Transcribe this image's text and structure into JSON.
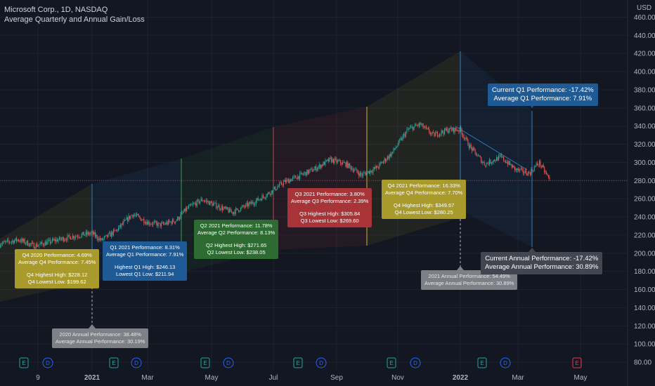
{
  "header": {
    "symbol": "Microsoft Corp., 1D, NASDAQ",
    "indicator": "Average Quarterly and Annual Gain/Loss"
  },
  "colors": {
    "background": "#131722",
    "up": "#26a69a",
    "down": "#ef5350",
    "q1": "#1e5a96",
    "q2": "#2e6b32",
    "q3": "#a83438",
    "q4": "#a99a2c",
    "annual": "#7e8088",
    "annual_current": "#434651"
  },
  "chart_data": {
    "type": "candlestick",
    "currency": "USD",
    "ylim": [
      80,
      460
    ],
    "y_ticks": [
      "460.00",
      "440.00",
      "420.00",
      "400.00",
      "380.00",
      "360.00",
      "340.00",
      "320.00",
      "300.00",
      "280.00",
      "260.00",
      "240.00",
      "220.00",
      "200.00",
      "180.00",
      "160.00",
      "140.00",
      "120.00",
      "100.00",
      "80.00"
    ],
    "x_ticks": [
      "9",
      "2021",
      "Mar",
      "May",
      "Jul",
      "Sep",
      "Nov",
      "2022",
      "Mar",
      "May"
    ],
    "last_price": 280,
    "price_path": [
      [
        "2020-10-01",
        210
      ],
      [
        "2020-10-20",
        215
      ],
      [
        "2020-11-05",
        208
      ],
      [
        "2020-11-25",
        214
      ],
      [
        "2020-12-15",
        219
      ],
      [
        "2021-01-01",
        222
      ],
      [
        "2021-01-10",
        214
      ],
      [
        "2021-01-25",
        225
      ],
      [
        "2021-02-10",
        243
      ],
      [
        "2021-02-25",
        234
      ],
      [
        "2021-03-10",
        231
      ],
      [
        "2021-03-25",
        236
      ],
      [
        "2021-04-05",
        249
      ],
      [
        "2021-04-20",
        259
      ],
      [
        "2021-05-05",
        252
      ],
      [
        "2021-05-20",
        245
      ],
      [
        "2021-06-10",
        256
      ],
      [
        "2021-06-25",
        266
      ],
      [
        "2021-07-10",
        278
      ],
      [
        "2021-07-25",
        285
      ],
      [
        "2021-08-10",
        293
      ],
      [
        "2021-08-25",
        303
      ],
      [
        "2021-09-10",
        298
      ],
      [
        "2021-09-25",
        286
      ],
      [
        "2021-10-10",
        294
      ],
      [
        "2021-10-25",
        310
      ],
      [
        "2021-11-10",
        336
      ],
      [
        "2021-11-22",
        342
      ],
      [
        "2021-12-05",
        330
      ],
      [
        "2021-12-20",
        336
      ],
      [
        "2022-01-01",
        336
      ],
      [
        "2022-01-10",
        318
      ],
      [
        "2022-01-25",
        298
      ],
      [
        "2022-02-10",
        306
      ],
      [
        "2022-02-25",
        292
      ],
      [
        "2022-03-10",
        288
      ],
      [
        "2022-03-20",
        300
      ],
      [
        "2022-03-31",
        280
      ]
    ],
    "quarters": [
      {
        "label": "Q4 2020 Performance: 4.69%",
        "avg": "Average Q4 Performance: 7.45%",
        "high": "Q4 Highest High: $228.12",
        "low": "Q4 Lowest Low: $199.62"
      },
      {
        "label": "Q1 2021 Performance: 8.31%",
        "avg": "Average Q1 Performance: 7.91%",
        "high": "Highest Q1 High: $246.13",
        "low": "Lowest Q1 Low: $211.94"
      },
      {
        "label": "Q2 2021 Performance: 11.78%",
        "avg": "Average Q2 Performance: 8.13%",
        "high": "Q2 Highest High: $271.65",
        "low": "Q2 Lowest Low: $238.05"
      },
      {
        "label": "Q3 2021 Performance: 3.80%",
        "avg": "Average Q3 Performance: 2.39%",
        "high": "Q3 Highest High: $305.84",
        "low": "Q3 Lowest Low: $269.60"
      },
      {
        "label": "Q4 2021 Performance: 16.33%",
        "avg": "Average Q4 Performance: 7.70%",
        "high": "Q4 Highest High: $349.67",
        "low": "Q4 Lowest Low: $280.25"
      }
    ],
    "current_q1": {
      "label": "Current Q1 Performance: -17.42%",
      "avg": "Average Q1 Performance: 7.91%"
    },
    "annual_2020": {
      "label": "2020 Annual Performance: 38.48%",
      "avg": "Average Annual Performance: 30.19%"
    },
    "annual_2021": {
      "label": "2021 Annual Performance: 54.49%",
      "avg": "Average Annual Performance: 30.89%"
    },
    "annual_current": {
      "label": "Current Annual Performance: -17.42%",
      "avg": "Average Annual Performance: 30.89%"
    },
    "events": [
      "E",
      "D",
      "E",
      "D",
      "E",
      "D",
      "E",
      "D",
      "E",
      "D",
      "E",
      "D",
      "E"
    ]
  }
}
